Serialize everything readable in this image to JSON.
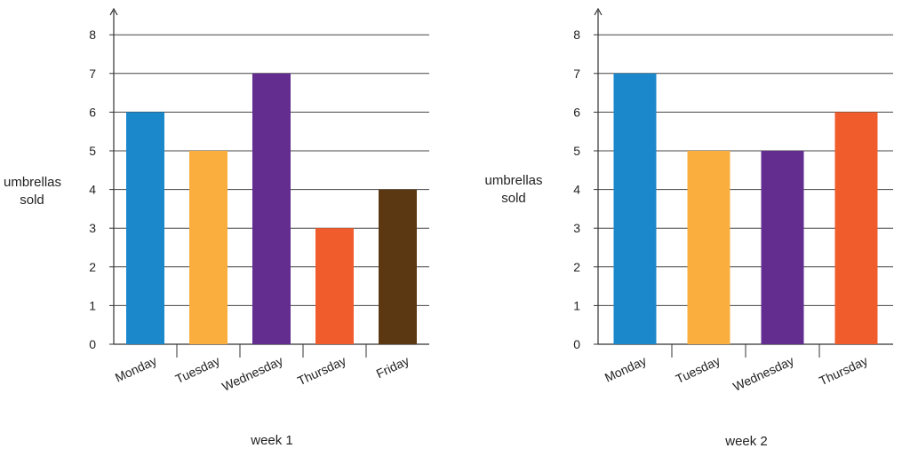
{
  "chart_data": [
    {
      "type": "bar",
      "categories": [
        "Monday",
        "Tuesday",
        "Wednesday",
        "Thursday",
        "Friday"
      ],
      "values": [
        6,
        5,
        7,
        3,
        4
      ],
      "colors": [
        "#1b88cc",
        "#f9ae3e",
        "#622d8f",
        "#f05c2b",
        "#5c3812"
      ],
      "xlabel": "week 1",
      "ylabel": "umbrellas\nsold",
      "ylim": [
        0,
        8
      ],
      "yticks": [
        0,
        1,
        2,
        3,
        4,
        5,
        6,
        7,
        8
      ],
      "grid": true
    },
    {
      "type": "bar",
      "categories": [
        "Monday",
        "Tuesday",
        "Wednesday",
        "Thursday"
      ],
      "values": [
        7,
        5,
        5,
        6
      ],
      "colors": [
        "#1b88cc",
        "#f9ae3e",
        "#622d8f",
        "#f05c2b"
      ],
      "xlabel": "week 2",
      "ylabel": "umbrellas\nsold",
      "ylim": [
        0,
        8
      ],
      "yticks": [
        0,
        1,
        2,
        3,
        4,
        5,
        6,
        7,
        8
      ],
      "grid": true
    }
  ]
}
